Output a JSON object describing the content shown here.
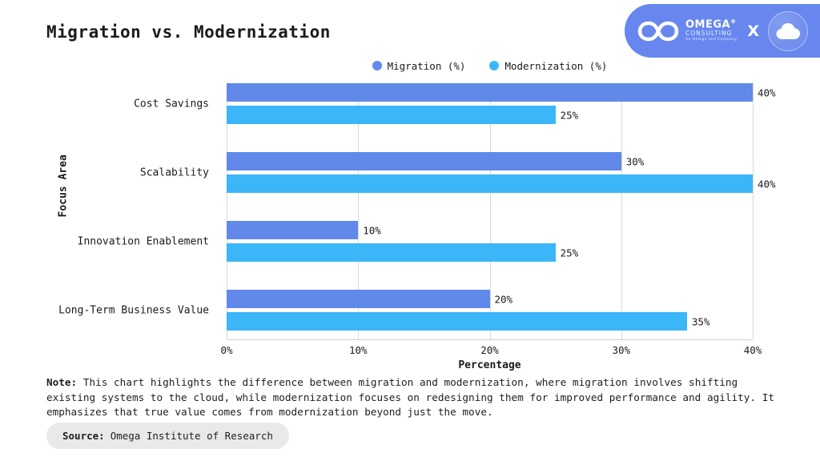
{
  "title": "Migration vs. Modernization",
  "brand": {
    "name": "OMEGA",
    "registered": "®",
    "subtitle": "CONSULTING",
    "tagline": "An Omega and Company",
    "separator": "X",
    "badge_color": "#6787ee"
  },
  "legend": [
    {
      "label": "Migration (%)",
      "color": "#6189ea"
    },
    {
      "label": "Modernization (%)",
      "color": "#3bb6f9"
    }
  ],
  "chart_data": {
    "type": "bar",
    "orientation": "horizontal",
    "title": "Migration vs. Modernization",
    "categories": [
      "Cost Savings",
      "Scalability",
      "Innovation Enablement",
      "Long-Term Business Value"
    ],
    "series": [
      {
        "name": "Migration (%)",
        "color": "#6189ea",
        "values": [
          40,
          30,
          10,
          20
        ]
      },
      {
        "name": "Modernization (%)",
        "color": "#3bb6f9",
        "values": [
          25,
          40,
          25,
          35
        ]
      }
    ],
    "xlabel": "Percentage",
    "ylabel": "Focus Area",
    "xlim": [
      0,
      40
    ],
    "xticks": [
      "0%",
      "10%",
      "20%",
      "30%",
      "40%"
    ],
    "grid": true,
    "legend_position": "top",
    "value_suffix": "%"
  },
  "note": {
    "label": "Note:",
    "text": "This chart highlights the difference between migration and modernization, where migration involves shifting existing systems to the cloud, while modernization focuses on redesigning them for improved performance and agility. It emphasizes that true value comes from modernization beyond just the move."
  },
  "source": {
    "label": "Source:",
    "text": "Omega Institute of Research"
  }
}
